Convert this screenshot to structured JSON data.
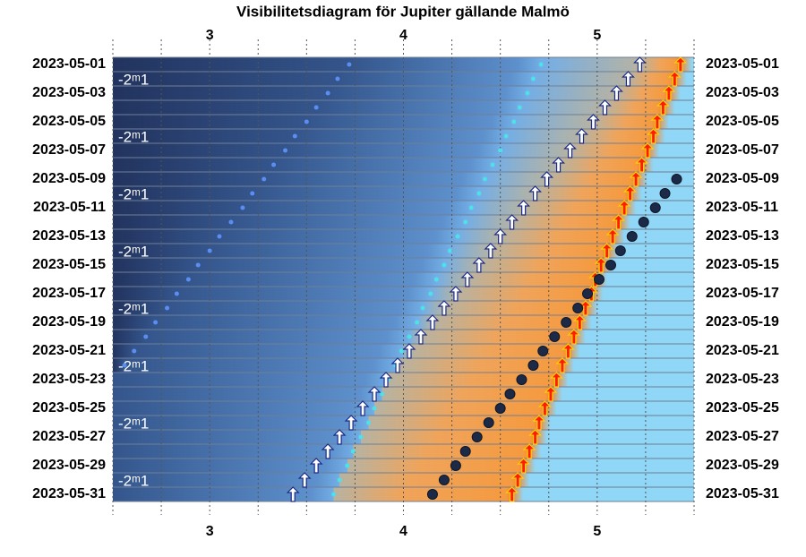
{
  "chart_data": {
    "type": "visibility",
    "title": "Visibilitetsdiagram för Jupiter gällande Malmö",
    "categories": [
      "2023-05-01",
      null,
      "2023-05-03",
      null,
      "2023-05-05",
      null,
      "2023-05-07",
      null,
      "2023-05-09",
      null,
      "2023-05-11",
      null,
      "2023-05-13",
      null,
      "2023-05-15",
      null,
      "2023-05-17",
      null,
      "2023-05-19",
      null,
      "2023-05-21",
      null,
      "2023-05-23",
      null,
      "2023-05-25",
      null,
      "2023-05-27",
      null,
      "2023-05-29",
      null,
      "2023-05-31"
    ],
    "xlim": [
      2.5,
      5.5
    ],
    "xticks": [
      3,
      4,
      5
    ],
    "minor_xticks": [
      2.75,
      3.25,
      3.5,
      3.75,
      4.25,
      4.5,
      4.75,
      5.25
    ],
    "magnitude_labels": [
      "-2ᵐ1",
      "-2ᵐ1",
      "-2ᵐ1",
      "-2ᵐ1",
      "-2ᵐ1",
      "-2ᵐ1",
      "-2ᵐ1",
      "-2ᵐ1"
    ],
    "series": [
      {
        "marker": "dot-small",
        "color": "#5b8ef0",
        "values": [
          3.72,
          3.66,
          3.61,
          3.55,
          3.5,
          3.44,
          3.39,
          3.33,
          3.28,
          3.22,
          3.17,
          3.11,
          3.05,
          3.0,
          2.94,
          2.89,
          2.83,
          2.78,
          2.72,
          2.67,
          2.61,
          2.56,
          null,
          null,
          null,
          null,
          null,
          null,
          null,
          null,
          null
        ]
      },
      {
        "marker": "dot-small",
        "color": "#4fe0e8",
        "values": [
          4.71,
          4.67,
          4.64,
          4.6,
          4.57,
          4.53,
          4.5,
          4.46,
          4.42,
          4.39,
          4.35,
          4.32,
          4.28,
          4.24,
          4.21,
          4.17,
          4.14,
          4.1,
          4.07,
          4.03,
          3.99,
          3.96,
          3.92,
          3.89,
          3.85,
          3.82,
          3.78,
          3.74,
          3.71,
          3.67,
          3.64
        ]
      },
      {
        "marker": "arrow",
        "color": "#ffffff",
        "values": [
          5.22,
          5.16,
          5.1,
          5.04,
          4.98,
          4.92,
          4.86,
          4.8,
          4.74,
          4.68,
          4.62,
          4.56,
          4.5,
          4.45,
          4.39,
          4.33,
          4.27,
          4.21,
          4.15,
          4.09,
          4.03,
          3.97,
          3.91,
          3.85,
          3.79,
          3.73,
          3.67,
          3.61,
          3.55,
          3.49,
          3.43
        ]
      },
      {
        "marker": "arrow",
        "color": "#ff1a00",
        "values": [
          5.43,
          5.4,
          5.37,
          5.34,
          5.31,
          5.29,
          5.26,
          5.23,
          5.2,
          5.17,
          5.14,
          5.11,
          5.08,
          5.05,
          5.02,
          4.99,
          4.97,
          4.94,
          4.91,
          4.88,
          4.85,
          4.82,
          4.79,
          4.76,
          4.73,
          4.7,
          4.68,
          4.65,
          4.62,
          4.59,
          4.56
        ]
      },
      {
        "marker": "dot-large",
        "color": "#1c2a48",
        "values": [
          null,
          null,
          null,
          null,
          null,
          null,
          null,
          null,
          5.41,
          5.35,
          5.3,
          5.24,
          5.18,
          5.12,
          5.07,
          5.01,
          4.95,
          4.9,
          4.84,
          4.78,
          4.72,
          4.67,
          4.61,
          4.55,
          4.5,
          4.44,
          4.38,
          4.32,
          4.27,
          4.21,
          4.15
        ]
      }
    ]
  }
}
